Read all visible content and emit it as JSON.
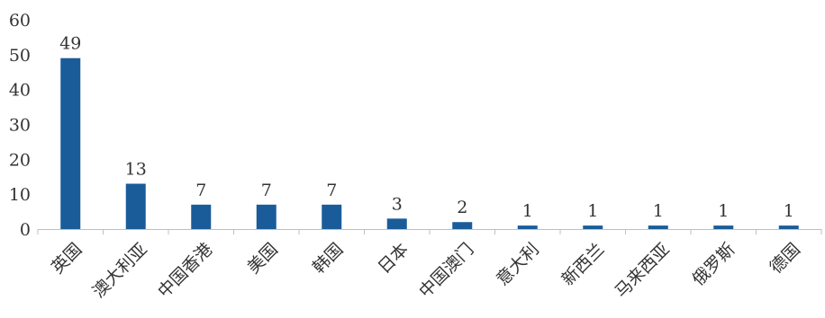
{
  "chart_data": {
    "type": "bar",
    "title": "",
    "xlabel": "",
    "ylabel": "",
    "categories": [
      "英国",
      "澳大利亚",
      "中国香港",
      "美国",
      "韩国",
      "日本",
      "中国澳门",
      "意大利",
      "新西兰",
      "马来西亚",
      "俄罗斯",
      "德国"
    ],
    "values": [
      49,
      13,
      7,
      7,
      7,
      3,
      2,
      1,
      1,
      1,
      1,
      1
    ],
    "ylim": [
      0,
      60
    ],
    "yticks": [
      0,
      10,
      20,
      30,
      40,
      50,
      60
    ],
    "grid": false,
    "legend": "none",
    "data_labels": true,
    "bar_color": "#1A5C9A",
    "axis_color": "#BFBFBF",
    "text_color": "#333333"
  }
}
